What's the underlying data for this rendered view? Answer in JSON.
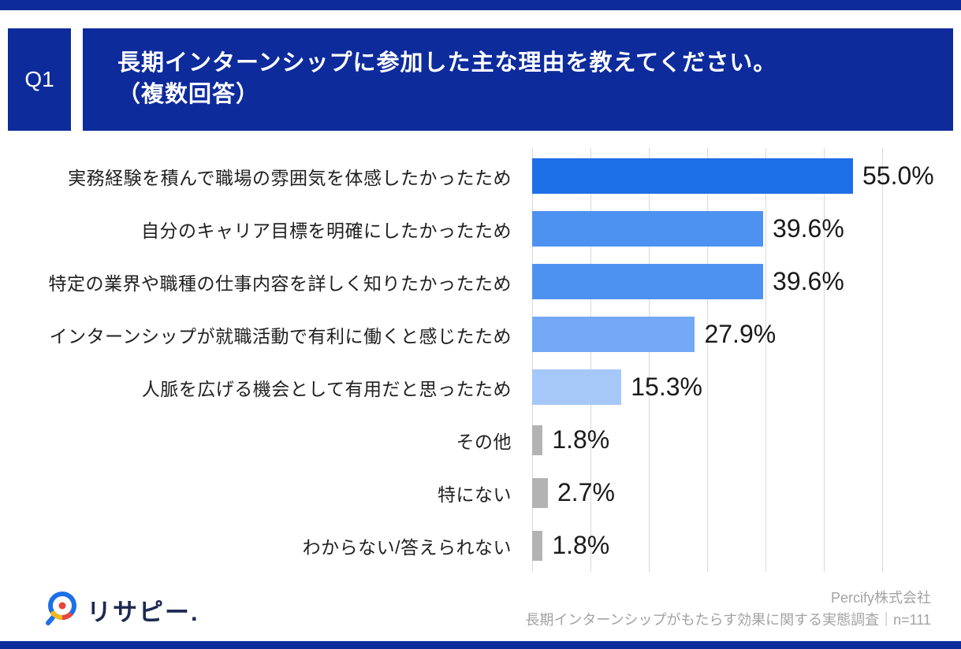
{
  "header": {
    "q_label": "Q1",
    "question_line1": "長期インターンシップに参加した主な理由を教えてください。",
    "question_line2": "（複数回答）"
  },
  "chart_data": {
    "type": "bar",
    "orientation": "horizontal",
    "title": "長期インターンシップに参加した主な理由を教えてください。（複数回答）",
    "categories": [
      "実務経験を積んで職場の雰囲気を体感したかったため",
      "自分のキャリア目標を明確にしたかったため",
      "特定の業界や職種の仕事内容を詳しく知りたかったため",
      "インターンシップが就職活動で有利に働くと感じたため",
      "人脈を広げる機会として有用だと思ったため",
      "その他",
      "特にない",
      "わからない/答えられない"
    ],
    "values": [
      55.0,
      39.6,
      39.6,
      27.9,
      15.3,
      1.8,
      2.7,
      1.8
    ],
    "value_labels": [
      "55.0%",
      "39.6%",
      "39.6%",
      "27.9%",
      "15.3%",
      "1.8%",
      "2.7%",
      "1.8%"
    ],
    "bar_colors": [
      "#1d6fe8",
      "#4e92f1",
      "#4e92f1",
      "#74a9f5",
      "#a6c8f8",
      "#b3b3b3",
      "#b3b3b3",
      "#b3b3b3"
    ],
    "xlim": [
      0,
      60
    ],
    "gridlines": [
      0,
      10,
      20,
      30,
      40,
      50,
      60
    ],
    "grid": true,
    "legend": false,
    "xlabel": "",
    "ylabel": ""
  },
  "footer": {
    "logo_text": "リサピー.",
    "company": "Percify株式会社",
    "survey_note": "長期インターンシップがもたらす効果に関する実態調査｜n=111"
  },
  "colors": {
    "frame_navy": "#0e2b9c",
    "gridline": "#d9d9d9",
    "gray_bar": "#b3b3b3",
    "accent_blue": "#1d6fe8",
    "logo_yellow": "#f5b81c",
    "logo_red": "#e8453c"
  }
}
